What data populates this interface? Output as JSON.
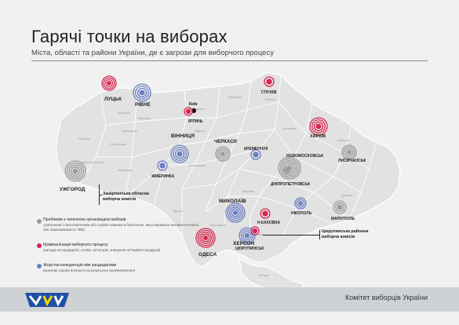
{
  "title": "Гарячі точки на виборах",
  "subtitle": "Міста, області та райони України, де є загрози для виборчого процесу",
  "colors": {
    "gray": "#9a9a9a",
    "red": "#d6274f",
    "blue": "#6b7fc2",
    "map_fill": "#e2e2e2",
    "border": "#ffffff"
  },
  "markers": [
    {
      "id": "lutsk",
      "label": "ЛУЦЬК",
      "colors": [
        "red"
      ]
    },
    {
      "id": "rivne",
      "label": "РІВНЕ",
      "colors": [
        "blue"
      ]
    },
    {
      "id": "kyiv",
      "label": "Київ",
      "colors": []
    },
    {
      "id": "irpin",
      "label": "ІРПІНЬ",
      "colors": [
        "red"
      ]
    },
    {
      "id": "hlukhiv",
      "label": "ГЛУХІВ",
      "colors": [
        "red"
      ]
    },
    {
      "id": "kharkiv",
      "label": "ХАРКІВ",
      "colors": [
        "red"
      ]
    },
    {
      "id": "vinnytsia",
      "label": "ВІННИЦЯ",
      "colors": [
        "blue"
      ]
    },
    {
      "id": "zhmerynka",
      "label": "ЖМЕРИНКА",
      "colors": [
        "blue"
      ]
    },
    {
      "id": "cherkasy",
      "label": "ЧЕРКАСИ",
      "colors": [
        "gray"
      ]
    },
    {
      "id": "kremenchuk",
      "label": "КРЕМЕНЧУК",
      "colors": [
        "blue"
      ]
    },
    {
      "id": "novomoskovsk",
      "label": "НОВОМОСКОВСЬК",
      "colors": [
        "gray"
      ]
    },
    {
      "id": "dnipropetrovsk",
      "label": "ДНІПРОПЕТРОВСЬК",
      "colors": [
        "gray"
      ]
    },
    {
      "id": "lysychansk",
      "label": "ЛИСИЧАНСЬК",
      "colors": [
        "gray"
      ]
    },
    {
      "id": "uzhhorod",
      "label": "УЖГОРОД",
      "colors": [
        "gray"
      ]
    },
    {
      "id": "mykolaiv",
      "label": "МИКОЛАЇВ",
      "colors": [
        "blue"
      ]
    },
    {
      "id": "nikopol",
      "label": "НІКОПОЛЬ",
      "colors": [
        "blue"
      ]
    },
    {
      "id": "mariupol",
      "label": "МАРІУПОЛЬ",
      "colors": [
        "gray"
      ]
    },
    {
      "id": "nova_kakhovka",
      "label": "Н.КАХОВКА",
      "colors": [
        "red"
      ]
    },
    {
      "id": "odesa",
      "label": "ОДЕСА",
      "colors": [
        "red"
      ]
    },
    {
      "id": "kherson",
      "label": "ХЕРСОН",
      "colors": [
        "blue"
      ]
    },
    {
      "id": "tsiurupynsk",
      "label": "ЦЮРУПИНСЬК",
      "colors": [
        "red"
      ]
    }
  ],
  "notes": {
    "zakarpattia": "Закарпатська обласна виборча комісія",
    "tsiurupynsk_commission": "Цюрупинська районна виборча комісія"
  },
  "legend": [
    {
      "color": "gray",
      "title": "Проблеми з технічною організацією виборів",
      "note": "(запізнення із виготовленням або серійні помилки в бюлетенях, явно виражена некомпетентність або заангажованість ТВК)"
    },
    {
      "color": "red",
      "title": "Криміналізація виборчого процесу",
      "note": "(напади на кандидатів, штаби, агітаторів, знищення агітаційної продукції)"
    },
    {
      "color": "blue",
      "title": "Жорстка конкуренція між кандидатами",
      "note": "(можливі спроби вплинути на результати волевиявлення)"
    }
  ],
  "footer": {
    "organization": "Комітет виборців України"
  }
}
